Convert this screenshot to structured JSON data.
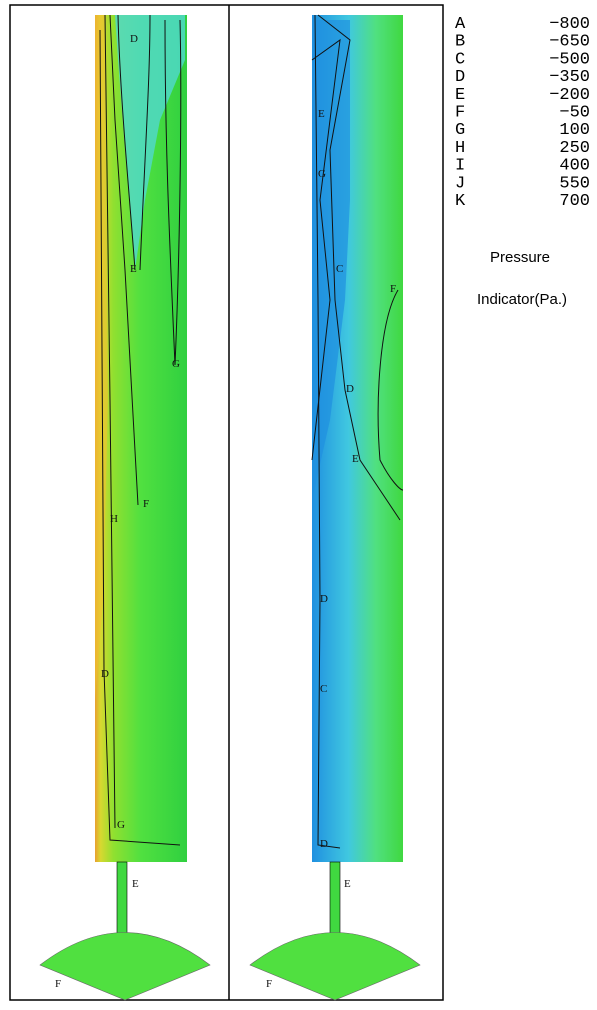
{
  "legend": {
    "entries": [
      {
        "letter": "A",
        "value": "−800"
      },
      {
        "letter": "B",
        "value": "−650"
      },
      {
        "letter": "C",
        "value": "−500"
      },
      {
        "letter": "D",
        "value": "−350"
      },
      {
        "letter": "E",
        "value": "−200"
      },
      {
        "letter": "F",
        "value": "−50"
      },
      {
        "letter": "G",
        "value": "100"
      },
      {
        "letter": "H",
        "value": "250"
      },
      {
        "letter": "I",
        "value": "400"
      },
      {
        "letter": "J",
        "value": "550"
      },
      {
        "letter": "K",
        "value": "700"
      }
    ],
    "title_line1": "Pressure",
    "title_line2": "Indicator(Pa.)"
  },
  "panels": [
    {
      "contour_labels": [
        "D",
        "E",
        "G",
        "F",
        "H",
        "D",
        "G",
        "E",
        "F"
      ]
    },
    {
      "contour_labels": [
        "E",
        "G",
        "C",
        "F",
        "D",
        "E",
        "D",
        "C",
        "D",
        "E",
        "F"
      ]
    }
  ]
}
